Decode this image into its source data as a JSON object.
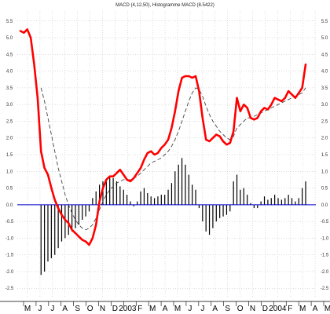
{
  "chart_data": {
    "type": "line",
    "title": "MACD (4,12,50), Histogramme MACD (8.5422)",
    "xlabel": "",
    "ylabel": "",
    "ylim": [
      -2.8,
      5.8
    ],
    "y_ticks": [
      "5.5",
      "5.0",
      "4.5",
      "4.0",
      "3.5",
      "3.0",
      "2.5",
      "2.0",
      "1.5",
      "1.0",
      "0.5",
      "0.0",
      "-0.5",
      "-1.0",
      "-1.5",
      "-2.0",
      "-2.5"
    ],
    "x_ticks": [
      "M",
      "J",
      "J",
      "A",
      "S",
      "O",
      "N",
      "D",
      "2003",
      "F",
      "M",
      "A",
      "M",
      "J",
      "J",
      "A",
      "S",
      "O",
      "N",
      "D",
      "2004",
      "F",
      "M",
      "A",
      "M"
    ],
    "grid": true,
    "colors": {
      "macd": "#ff0000",
      "signal": "#444444",
      "histogram": "#000000",
      "zero_line": "#0000cc"
    },
    "series": [
      {
        "style": "line",
        "values": [
          5.2,
          5.15,
          5.25,
          5.0,
          4.2,
          3.2,
          1.6,
          1.1,
          0.9,
          0.5,
          0.15,
          -0.1,
          -0.3,
          -0.45,
          -0.55,
          -0.75,
          -0.85,
          -0.95,
          -1.05,
          -1.1,
          -1.2,
          -1.0,
          -0.6,
          0.1,
          0.5,
          0.75,
          0.85,
          0.85,
          0.95,
          1.05,
          0.9,
          0.75,
          0.7,
          0.8,
          0.95,
          1.1,
          1.35,
          1.55,
          1.6,
          1.5,
          1.55,
          1.7,
          1.8,
          1.95,
          2.3,
          2.8,
          3.4,
          3.8,
          3.85,
          3.85,
          3.8,
          3.85,
          3.4,
          2.6,
          1.95,
          1.9,
          2.0,
          2.1,
          2.05,
          1.9,
          1.8,
          1.85,
          2.2,
          3.2,
          2.8,
          3.0,
          2.9,
          2.6,
          2.55,
          2.6,
          2.8,
          2.9,
          2.85,
          3.0,
          3.2,
          3.15,
          3.1,
          3.2,
          3.4,
          3.3,
          3.2,
          3.35,
          3.5,
          4.2
        ]
      },
      {
        "style": "dashed",
        "values": [
          null,
          null,
          null,
          null,
          null,
          null,
          3.5,
          3.1,
          2.6,
          2.1,
          1.6,
          1.1,
          0.7,
          0.3,
          0.0,
          -0.25,
          -0.45,
          -0.6,
          -0.7,
          -0.75,
          -0.7,
          -0.6,
          -0.4,
          -0.15,
          0.1,
          0.3,
          0.45,
          0.55,
          0.65,
          0.7,
          0.75,
          0.75,
          0.75,
          0.8,
          0.85,
          0.95,
          1.05,
          1.15,
          1.25,
          1.3,
          1.35,
          1.4,
          1.5,
          1.6,
          1.75,
          1.95,
          2.2,
          2.5,
          2.8,
          3.1,
          3.35,
          3.5,
          3.45,
          3.25,
          2.95,
          2.7,
          2.5,
          2.35,
          2.2,
          2.1,
          2.0,
          1.95,
          2.05,
          2.3,
          2.4,
          2.5,
          2.6,
          2.6,
          2.65,
          2.7,
          2.75,
          2.8,
          2.85,
          2.9,
          2.95,
          3.0,
          3.05,
          3.1,
          3.15,
          3.2,
          3.25,
          3.3,
          3.35,
          3.5
        ]
      },
      {
        "style": "histogram",
        "values": [
          null,
          null,
          null,
          null,
          null,
          null,
          -2.1,
          -2.0,
          -1.7,
          -1.6,
          -1.5,
          -1.3,
          -1.1,
          -1.0,
          -0.9,
          -0.8,
          -0.7,
          -0.6,
          -0.45,
          -0.35,
          -0.2,
          0.2,
          0.4,
          0.6,
          0.7,
          0.75,
          0.85,
          0.8,
          0.7,
          0.55,
          0.45,
          0.3,
          0.1,
          -0.05,
          0.1,
          0.4,
          0.5,
          0.35,
          0.25,
          0.2,
          0.25,
          0.3,
          0.3,
          0.45,
          0.65,
          1.0,
          1.2,
          1.4,
          1.2,
          0.9,
          0.6,
          0.45,
          -0.1,
          -0.5,
          -0.8,
          -0.9,
          -0.7,
          -0.5,
          -0.4,
          -0.35,
          -0.3,
          -0.2,
          0.7,
          0.9,
          0.45,
          0.5,
          0.3,
          0.05,
          -0.1,
          -0.1,
          0.1,
          0.25,
          0.15,
          0.2,
          0.3,
          0.2,
          0.15,
          0.2,
          0.3,
          0.2,
          0.1,
          0.2,
          0.5,
          0.7
        ]
      }
    ]
  }
}
